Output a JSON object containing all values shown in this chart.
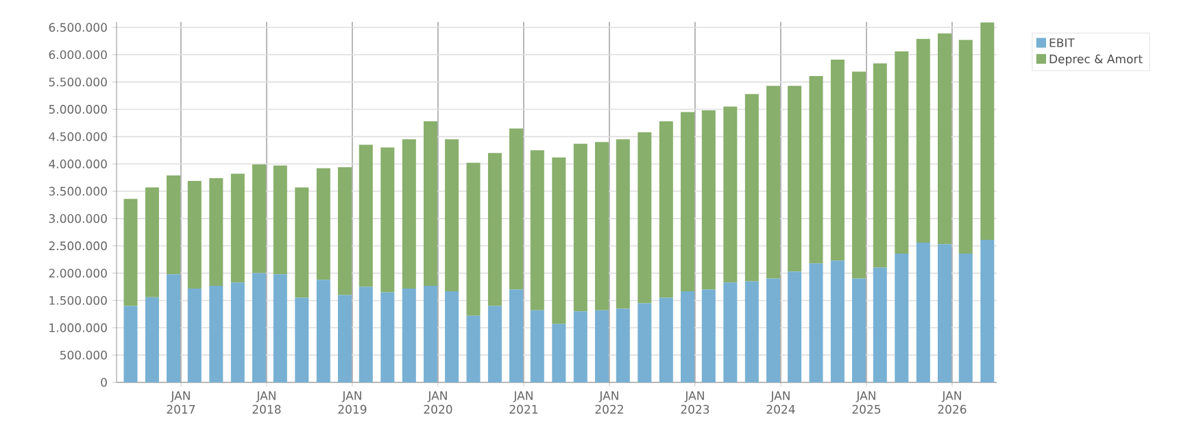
{
  "chart_data": {
    "type": "bar",
    "stacked": true,
    "x": [
      "2016-05-31",
      "2016-08-31",
      "2016-11-30",
      "2017-02-28",
      "2017-05-31",
      "2017-08-31",
      "2017-11-30",
      "2018-02-28",
      "2018-05-31",
      "2018-08-31",
      "2018-11-30",
      "2019-02-28",
      "2019-05-31",
      "2019-08-31",
      "2019-11-30",
      "2020-02-29",
      "2020-05-31",
      "2020-08-31",
      "2020-11-30",
      "2021-02-28",
      "2021-05-31",
      "2021-08-31",
      "2021-11-30",
      "2022-02-28",
      "2022-05-31",
      "2022-08-31",
      "2022-11-30",
      "2023-02-28",
      "2023-05-31",
      "2023-08-31",
      "2023-11-30",
      "2024-02-29",
      "2024-05-31",
      "2024-08-31",
      "2024-11-30",
      "2025-02-28",
      "2025-05-31",
      "2025-08-31",
      "2025-11-30",
      "2026-02-28",
      "2026-05-31"
    ],
    "series": [
      {
        "name": "EBIT",
        "color": "#77b0d3",
        "values": [
          1400000,
          1560000,
          1980000,
          1720000,
          1770000,
          1830000,
          2000000,
          1980000,
          1550000,
          1880000,
          1600000,
          1750000,
          1650000,
          1720000,
          1770000,
          1670000,
          1220000,
          1400000,
          1700000,
          1320000,
          1070000,
          1300000,
          1320000,
          1350000,
          1450000,
          1550000,
          1670000,
          1700000,
          1830000,
          1850000,
          1900000,
          2030000,
          2180000,
          2230000,
          1900000,
          2100000,
          2360000,
          2560000,
          2530000,
          2360000,
          2610000
        ]
      },
      {
        "name": "Deprec & Amort",
        "color": "#88af6b",
        "values": [
          1960000,
          2010000,
          1810000,
          1970000,
          1970000,
          1990000,
          1990000,
          1990000,
          2020000,
          2040000,
          2340000,
          2600000,
          2650000,
          2730000,
          3010000,
          2780000,
          2800000,
          2800000,
          2950000,
          2930000,
          3050000,
          3070000,
          3080000,
          3100000,
          3130000,
          3230000,
          3280000,
          3280000,
          3220000,
          3430000,
          3530000,
          3400000,
          3430000,
          3680000,
          3790000,
          3740000,
          3700000,
          3730000,
          3860000,
          3910000,
          3980000
        ]
      }
    ],
    "xlim": [
      "2016-04-01",
      "2026-07-10"
    ],
    "xticks": [
      {
        "value": "2017-01-01",
        "label": "JAN 2017"
      },
      {
        "value": "2018-01-01",
        "label": "JAN 2018"
      },
      {
        "value": "2019-01-01",
        "label": "JAN 2019"
      },
      {
        "value": "2020-01-01",
        "label": "JAN 2020"
      },
      {
        "value": "2021-01-01",
        "label": "JAN 2021"
      },
      {
        "value": "2022-01-01",
        "label": "JAN 2022"
      },
      {
        "value": "2023-01-01",
        "label": "JAN 2023"
      },
      {
        "value": "2024-01-01",
        "label": "JAN 2024"
      },
      {
        "value": "2025-01-01",
        "label": "JAN 2025"
      },
      {
        "value": "2026-01-01",
        "label": "JAN 2026"
      }
    ],
    "ylim": [
      0,
      6600000
    ],
    "yticks": [
      0,
      {
        "value": 500000,
        "label": "500.000"
      },
      {
        "value": 1000000,
        "label": "1.000.000"
      },
      {
        "value": 1500000,
        "label": "1.500.000"
      },
      {
        "value": 2000000,
        "label": "2.000.000"
      },
      {
        "value": 2500000,
        "label": "2.500.000"
      },
      {
        "value": 3000000,
        "label": "3.000.000"
      },
      {
        "value": 3500000,
        "label": "3.500.000"
      },
      {
        "value": 4000000,
        "label": "4.000.000"
      },
      {
        "value": 4500000,
        "label": "4.500.000"
      },
      {
        "value": 5000000,
        "label": "5.000.000"
      },
      {
        "value": 5500000,
        "label": "5.500.000"
      },
      {
        "value": 6000000,
        "label": "6.000.000"
      },
      {
        "value": 6500000,
        "label": "6.500.000"
      }
    ],
    "grid": true,
    "legend": "top right"
  }
}
